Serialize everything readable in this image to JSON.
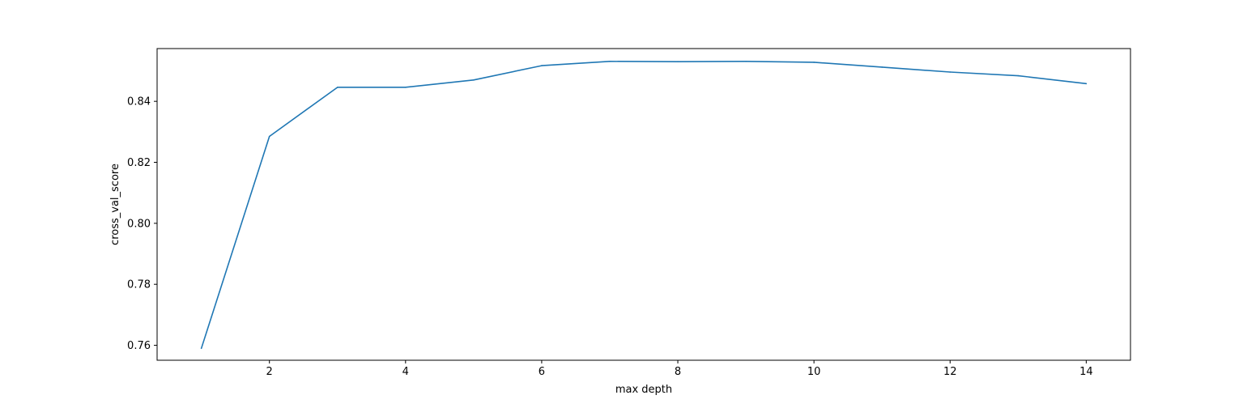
{
  "chart_data": {
    "type": "line",
    "title": "",
    "xlabel": "max depth",
    "ylabel": "cross_val_score",
    "xlim": [
      0.35,
      14.65
    ],
    "ylim": [
      0.7551,
      0.8573
    ],
    "xticks": [
      2,
      4,
      6,
      8,
      10,
      12,
      14
    ],
    "xtick_labels": [
      "2",
      "4",
      "6",
      "8",
      "10",
      "12",
      "14"
    ],
    "yticks": [
      0.76,
      0.78,
      0.8,
      0.82,
      0.84
    ],
    "ytick_labels": [
      "0.76",
      "0.78",
      "0.80",
      "0.82",
      "0.84"
    ],
    "grid": false,
    "series": [
      {
        "color": "#1f77b4",
        "x": [
          1,
          2,
          3,
          4,
          5,
          6,
          7,
          8,
          9,
          10,
          11,
          12,
          13,
          14
        ],
        "y": [
          0.759,
          0.8285,
          0.8446,
          0.8446,
          0.847,
          0.8517,
          0.8531,
          0.853,
          0.8531,
          0.8528,
          0.8512,
          0.8496,
          0.8484,
          0.8458
        ]
      }
    ]
  }
}
